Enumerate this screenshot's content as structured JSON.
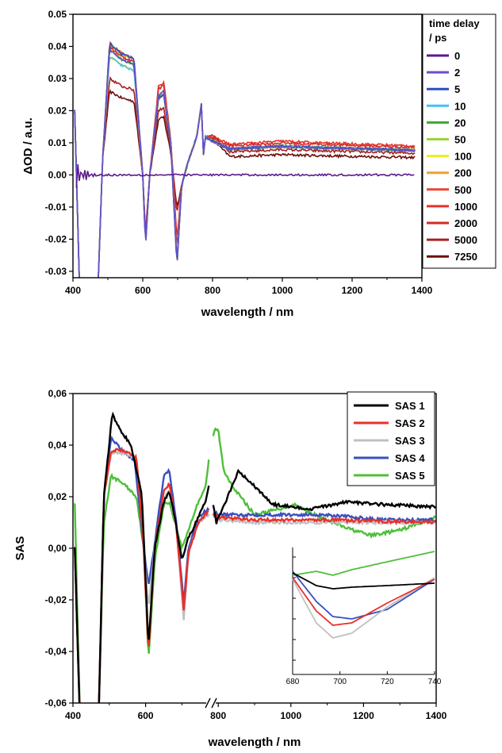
{
  "chart_data": [
    {
      "type": "line",
      "xlabel": "wavelength / nm",
      "ylabel": "ΔOD / a.u.",
      "xlim": [
        400,
        1400
      ],
      "ylim": [
        -0.032,
        0.05
      ],
      "xticks": [
        "400",
        "600",
        "800",
        "1000",
        "1200",
        "1400"
      ],
      "yticks": [
        "-0.03",
        "-0.02",
        "-0.01",
        "0.00",
        "0.01",
        "0.02",
        "0.03",
        "0.04",
        "0.05"
      ],
      "legend_title": [
        "time delay",
        "/ ps"
      ],
      "legend_placement": "right",
      "series": [
        {
          "name": "0",
          "color": "#5b1a8c"
        },
        {
          "name": "2",
          "color": "#6a4fc9"
        },
        {
          "name": "5",
          "color": "#2a4fbf"
        },
        {
          "name": "10",
          "color": "#44c1ee"
        },
        {
          "name": "20",
          "color": "#3aa832"
        },
        {
          "name": "50",
          "color": "#9bd43a"
        },
        {
          "name": "100",
          "color": "#f0ea24"
        },
        {
          "name": "200",
          "color": "#f2a02a"
        },
        {
          "name": "500",
          "color": "#ee4433"
        },
        {
          "name": "1000",
          "color": "#e8302a"
        },
        {
          "name": "2000",
          "color": "#d22b25"
        },
        {
          "name": "5000",
          "color": "#a82020"
        },
        {
          "name": "7250",
          "color": "#6b0f0f"
        }
      ]
    },
    {
      "type": "line",
      "xlabel": "wavelength / nm",
      "ylabel": "SAS",
      "xlim": [
        400,
        1400
      ],
      "ylim": [
        -0.06,
        0.06
      ],
      "xticks": [
        "400",
        "600",
        "800",
        "1000",
        "1200",
        "1400"
      ],
      "yticks": [
        "-0,06",
        "-0,04",
        "-0,02",
        "0,00",
        "0,02",
        "0,04",
        "0,06"
      ],
      "legend_placement": "top-right",
      "axis_break": 780,
      "series": [
        {
          "name": "SAS 1",
          "color": "#000000"
        },
        {
          "name": "SAS 2",
          "color": "#e8302a"
        },
        {
          "name": "SAS 3",
          "color": "#c0c0c0"
        },
        {
          "name": "SAS 4",
          "color": "#3a4fc0"
        },
        {
          "name": "SAS 5",
          "color": "#4fbf3a"
        }
      ],
      "inset": {
        "xlim": [
          680,
          740
        ],
        "xticks": [
          "680",
          "700",
          "720",
          "740"
        ]
      }
    }
  ]
}
